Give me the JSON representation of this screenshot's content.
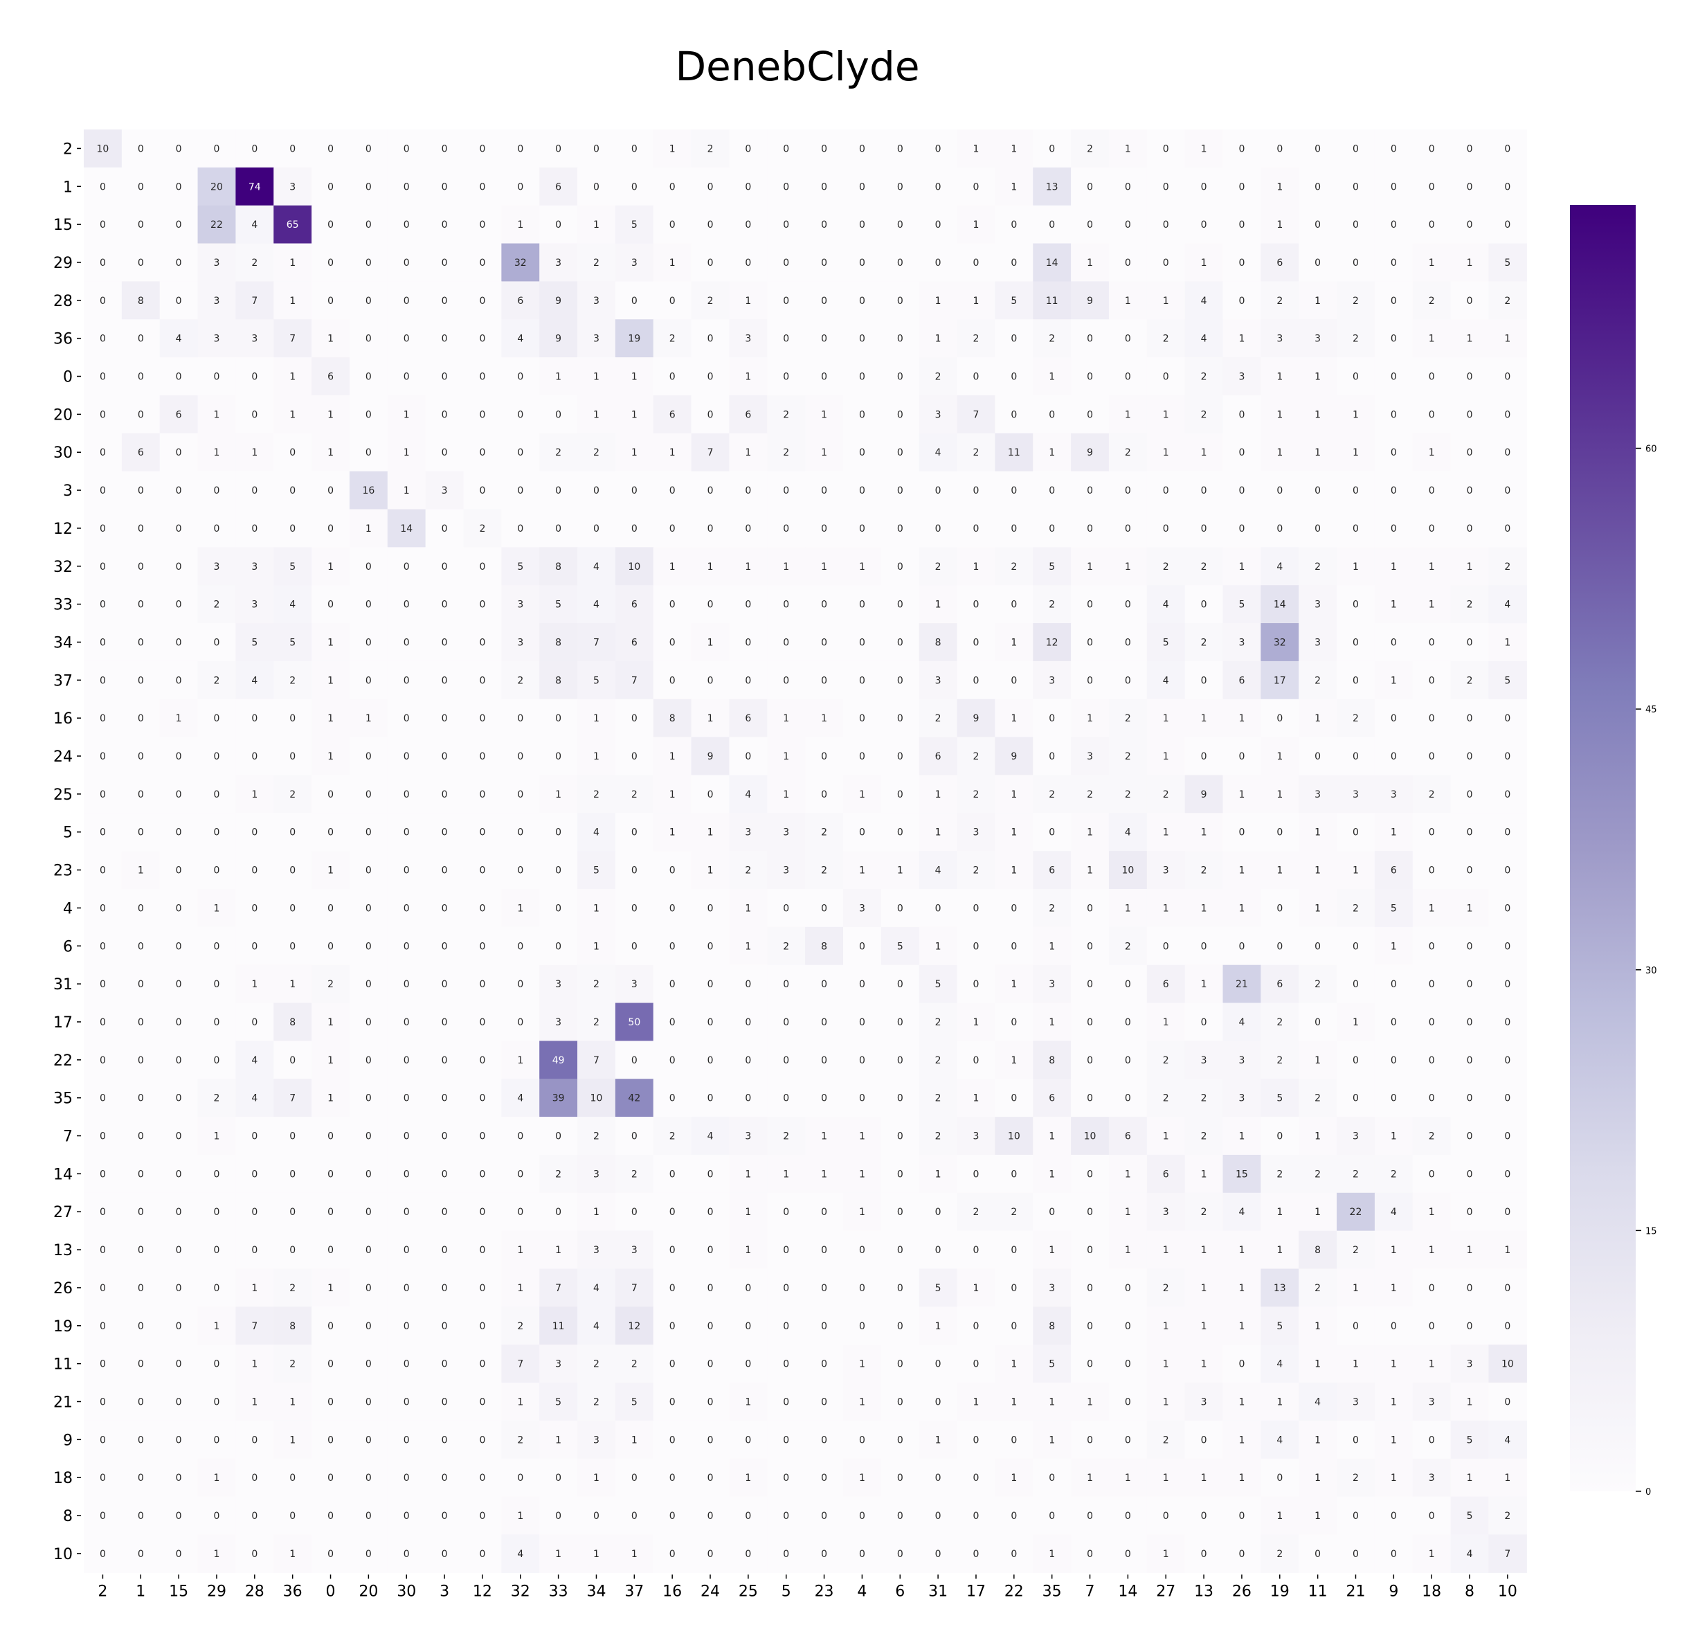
{
  "chart_data": {
    "type": "heatmap",
    "title": "DenebClyde",
    "row_labels": [
      "2",
      "1",
      "15",
      "29",
      "28",
      "36",
      "0",
      "20",
      "30",
      "3",
      "12",
      "32",
      "33",
      "34",
      "37",
      "16",
      "24",
      "25",
      "5",
      "23",
      "4",
      "6",
      "31",
      "17",
      "22",
      "35",
      "7",
      "14",
      "27",
      "13",
      "26",
      "19",
      "11",
      "21",
      "9",
      "18",
      "8",
      "10"
    ],
    "col_labels": [
      "2",
      "1",
      "15",
      "29",
      "28",
      "36",
      "0",
      "20",
      "30",
      "3",
      "12",
      "32",
      "33",
      "34",
      "37",
      "16",
      "24",
      "25",
      "5",
      "23",
      "4",
      "6",
      "31",
      "17",
      "22",
      "35",
      "7",
      "14",
      "27",
      "13",
      "26",
      "19",
      "11",
      "21",
      "9",
      "18",
      "8",
      "10"
    ],
    "values": [
      [
        10,
        0,
        0,
        0,
        0,
        0,
        0,
        0,
        0,
        0,
        0,
        0,
        0,
        0,
        0,
        1,
        2,
        0,
        0,
        0,
        0,
        0,
        0,
        1,
        1,
        0,
        2,
        1,
        0,
        1,
        0,
        0,
        0,
        0,
        0,
        0,
        0,
        0
      ],
      [
        0,
        0,
        0,
        20,
        74,
        3,
        0,
        0,
        0,
        0,
        0,
        0,
        6,
        0,
        0,
        0,
        0,
        0,
        0,
        0,
        0,
        0,
        0,
        0,
        1,
        13,
        0,
        0,
        0,
        0,
        0,
        1,
        0,
        0,
        0,
        0,
        0,
        0
      ],
      [
        0,
        0,
        0,
        22,
        4,
        65,
        0,
        0,
        0,
        0,
        0,
        1,
        0,
        1,
        5,
        0,
        0,
        0,
        0,
        0,
        0,
        0,
        0,
        1,
        0,
        0,
        0,
        0,
        0,
        0,
        0,
        1,
        0,
        0,
        0,
        0,
        0,
        0
      ],
      [
        0,
        0,
        0,
        3,
        2,
        1,
        0,
        0,
        0,
        0,
        0,
        32,
        3,
        2,
        3,
        1,
        0,
        0,
        0,
        0,
        0,
        0,
        0,
        0,
        0,
        14,
        1,
        0,
        0,
        1,
        0,
        6,
        0,
        0,
        0,
        1,
        1,
        5
      ],
      [
        0,
        8,
        0,
        3,
        7,
        1,
        0,
        0,
        0,
        0,
        0,
        6,
        9,
        3,
        0,
        0,
        2,
        1,
        0,
        0,
        0,
        0,
        1,
        1,
        5,
        11,
        9,
        1,
        1,
        4,
        0,
        2,
        1,
        2,
        0,
        2,
        0,
        2
      ],
      [
        0,
        0,
        4,
        3,
        3,
        7,
        1,
        0,
        0,
        0,
        0,
        4,
        9,
        3,
        19,
        2,
        0,
        3,
        0,
        0,
        0,
        0,
        1,
        2,
        0,
        2,
        0,
        0,
        2,
        4,
        1,
        3,
        3,
        2,
        0,
        1,
        1,
        1
      ],
      [
        0,
        0,
        0,
        0,
        0,
        1,
        6,
        0,
        0,
        0,
        0,
        0,
        1,
        1,
        1,
        0,
        0,
        1,
        0,
        0,
        0,
        0,
        2,
        0,
        0,
        1,
        0,
        0,
        0,
        2,
        3,
        1,
        1,
        0,
        0,
        0,
        0,
        0
      ],
      [
        0,
        0,
        6,
        1,
        0,
        1,
        1,
        0,
        1,
        0,
        0,
        0,
        0,
        1,
        1,
        6,
        0,
        6,
        2,
        1,
        0,
        0,
        3,
        7,
        0,
        0,
        0,
        1,
        1,
        2,
        0,
        1,
        1,
        1,
        0,
        0,
        0,
        0
      ],
      [
        0,
        6,
        0,
        1,
        1,
        0,
        1,
        0,
        1,
        0,
        0,
        0,
        2,
        2,
        1,
        1,
        7,
        1,
        2,
        1,
        0,
        0,
        4,
        2,
        11,
        1,
        9,
        2,
        1,
        1,
        0,
        1,
        1,
        1,
        0,
        1,
        0,
        0
      ],
      [
        0,
        0,
        0,
        0,
        0,
        0,
        0,
        16,
        1,
        3,
        0,
        0,
        0,
        0,
        0,
        0,
        0,
        0,
        0,
        0,
        0,
        0,
        0,
        0,
        0,
        0,
        0,
        0,
        0,
        0,
        0,
        0,
        0,
        0,
        0,
        0,
        0,
        0
      ],
      [
        0,
        0,
        0,
        0,
        0,
        0,
        0,
        1,
        14,
        0,
        2,
        0,
        0,
        0,
        0,
        0,
        0,
        0,
        0,
        0,
        0,
        0,
        0,
        0,
        0,
        0,
        0,
        0,
        0,
        0,
        0,
        0,
        0,
        0,
        0,
        0,
        0,
        0
      ],
      [
        0,
        0,
        0,
        3,
        3,
        5,
        1,
        0,
        0,
        0,
        0,
        5,
        8,
        4,
        10,
        1,
        1,
        1,
        1,
        1,
        1,
        0,
        2,
        1,
        2,
        5,
        1,
        1,
        2,
        2,
        1,
        4,
        2,
        1,
        1,
        1,
        1,
        2
      ],
      [
        0,
        0,
        0,
        2,
        3,
        4,
        0,
        0,
        0,
        0,
        0,
        3,
        5,
        4,
        6,
        0,
        0,
        0,
        0,
        0,
        0,
        0,
        1,
        0,
        0,
        2,
        0,
        0,
        4,
        0,
        5,
        14,
        3,
        0,
        1,
        1,
        2,
        4
      ],
      [
        0,
        0,
        0,
        0,
        5,
        5,
        1,
        0,
        0,
        0,
        0,
        3,
        8,
        7,
        6,
        0,
        1,
        0,
        0,
        0,
        0,
        0,
        8,
        0,
        1,
        12,
        0,
        0,
        5,
        2,
        3,
        32,
        3,
        0,
        0,
        0,
        0,
        1
      ],
      [
        0,
        0,
        0,
        2,
        4,
        2,
        1,
        0,
        0,
        0,
        0,
        2,
        8,
        5,
        7,
        0,
        0,
        0,
        0,
        0,
        0,
        0,
        3,
        0,
        0,
        3,
        0,
        0,
        4,
        0,
        6,
        17,
        2,
        0,
        1,
        0,
        2,
        5
      ],
      [
        0,
        0,
        1,
        0,
        0,
        0,
        1,
        1,
        0,
        0,
        0,
        0,
        0,
        1,
        0,
        8,
        1,
        6,
        1,
        1,
        0,
        0,
        2,
        9,
        1,
        0,
        1,
        2,
        1,
        1,
        1,
        0,
        1,
        2,
        0,
        0,
        0,
        0
      ],
      [
        0,
        0,
        0,
        0,
        0,
        0,
        1,
        0,
        0,
        0,
        0,
        0,
        0,
        1,
        0,
        1,
        9,
        0,
        1,
        0,
        0,
        0,
        6,
        2,
        9,
        0,
        3,
        2,
        1,
        0,
        0,
        1,
        0,
        0,
        0,
        0,
        0,
        0
      ],
      [
        0,
        0,
        0,
        0,
        1,
        2,
        0,
        0,
        0,
        0,
        0,
        0,
        1,
        2,
        2,
        1,
        0,
        4,
        1,
        0,
        1,
        0,
        1,
        2,
        1,
        2,
        2,
        2,
        2,
        9,
        1,
        1,
        3,
        3,
        3,
        2,
        0,
        0
      ],
      [
        0,
        0,
        0,
        0,
        0,
        0,
        0,
        0,
        0,
        0,
        0,
        0,
        0,
        4,
        0,
        1,
        1,
        3,
        3,
        2,
        0,
        0,
        1,
        3,
        1,
        0,
        1,
        4,
        1,
        1,
        0,
        0,
        1,
        0,
        1,
        0,
        0,
        0
      ],
      [
        0,
        1,
        0,
        0,
        0,
        0,
        1,
        0,
        0,
        0,
        0,
        0,
        0,
        5,
        0,
        0,
        1,
        2,
        3,
        2,
        1,
        1,
        4,
        2,
        1,
        6,
        1,
        10,
        3,
        2,
        1,
        1,
        1,
        1,
        6,
        0,
        0,
        0
      ],
      [
        0,
        0,
        0,
        1,
        0,
        0,
        0,
        0,
        0,
        0,
        0,
        1,
        0,
        1,
        0,
        0,
        0,
        1,
        0,
        0,
        3,
        0,
        0,
        0,
        0,
        2,
        0,
        1,
        1,
        1,
        1,
        0,
        1,
        2,
        5,
        1,
        1,
        0
      ],
      [
        0,
        0,
        0,
        0,
        0,
        0,
        0,
        0,
        0,
        0,
        0,
        0,
        0,
        1,
        0,
        0,
        0,
        1,
        2,
        8,
        0,
        5,
        1,
        0,
        0,
        1,
        0,
        2,
        0,
        0,
        0,
        0,
        0,
        0,
        1,
        0,
        0,
        0
      ],
      [
        0,
        0,
        0,
        0,
        1,
        1,
        2,
        0,
        0,
        0,
        0,
        0,
        3,
        2,
        3,
        0,
        0,
        0,
        0,
        0,
        0,
        0,
        5,
        0,
        1,
        3,
        0,
        0,
        6,
        1,
        21,
        6,
        2,
        0,
        0,
        0,
        0,
        0
      ],
      [
        0,
        0,
        0,
        0,
        0,
        8,
        1,
        0,
        0,
        0,
        0,
        0,
        3,
        2,
        50,
        0,
        0,
        0,
        0,
        0,
        0,
        0,
        2,
        1,
        0,
        1,
        0,
        0,
        1,
        0,
        4,
        2,
        0,
        1,
        0,
        0,
        0,
        0
      ],
      [
        0,
        0,
        0,
        0,
        4,
        0,
        1,
        0,
        0,
        0,
        0,
        1,
        49,
        7,
        0,
        0,
        0,
        0,
        0,
        0,
        0,
        0,
        2,
        0,
        1,
        8,
        0,
        0,
        2,
        3,
        3,
        2,
        1,
        0,
        0,
        0,
        0,
        0
      ],
      [
        0,
        0,
        0,
        2,
        4,
        7,
        1,
        0,
        0,
        0,
        0,
        4,
        39,
        10,
        42,
        0,
        0,
        0,
        0,
        0,
        0,
        0,
        2,
        1,
        0,
        6,
        0,
        0,
        2,
        2,
        3,
        5,
        2,
        0,
        0,
        0,
        0,
        0
      ],
      [
        0,
        0,
        0,
        1,
        0,
        0,
        0,
        0,
        0,
        0,
        0,
        0,
        0,
        2,
        0,
        2,
        4,
        3,
        2,
        1,
        1,
        0,
        2,
        3,
        10,
        1,
        10,
        6,
        1,
        2,
        1,
        0,
        1,
        3,
        1,
        2,
        0,
        0
      ],
      [
        0,
        0,
        0,
        0,
        0,
        0,
        0,
        0,
        0,
        0,
        0,
        0,
        2,
        3,
        2,
        0,
        0,
        1,
        1,
        1,
        1,
        0,
        1,
        0,
        0,
        1,
        0,
        1,
        6,
        1,
        15,
        2,
        2,
        2,
        2,
        0,
        0,
        0
      ],
      [
        0,
        0,
        0,
        0,
        0,
        0,
        0,
        0,
        0,
        0,
        0,
        0,
        0,
        1,
        0,
        0,
        0,
        1,
        0,
        0,
        1,
        0,
        0,
        2,
        2,
        0,
        0,
        1,
        3,
        2,
        4,
        1,
        1,
        22,
        4,
        1,
        0,
        0
      ],
      [
        0,
        0,
        0,
        0,
        0,
        0,
        0,
        0,
        0,
        0,
        0,
        1,
        1,
        3,
        3,
        0,
        0,
        1,
        0,
        0,
        0,
        0,
        0,
        0,
        0,
        1,
        0,
        1,
        1,
        1,
        1,
        1,
        8,
        2,
        1,
        1,
        1,
        1
      ],
      [
        0,
        0,
        0,
        0,
        1,
        2,
        1,
        0,
        0,
        0,
        0,
        1,
        7,
        4,
        7,
        0,
        0,
        0,
        0,
        0,
        0,
        0,
        5,
        1,
        0,
        3,
        0,
        0,
        2,
        1,
        1,
        13,
        2,
        1,
        1,
        0,
        0,
        0
      ],
      [
        0,
        0,
        0,
        1,
        7,
        8,
        0,
        0,
        0,
        0,
        0,
        2,
        11,
        4,
        12,
        0,
        0,
        0,
        0,
        0,
        0,
        0,
        1,
        0,
        0,
        8,
        0,
        0,
        1,
        1,
        1,
        5,
        1,
        0,
        0,
        0,
        0,
        0
      ],
      [
        0,
        0,
        0,
        0,
        1,
        2,
        0,
        0,
        0,
        0,
        0,
        7,
        3,
        2,
        2,
        0,
        0,
        0,
        0,
        0,
        1,
        0,
        0,
        0,
        1,
        5,
        0,
        0,
        1,
        1,
        0,
        4,
        1,
        1,
        1,
        1,
        3,
        10
      ],
      [
        0,
        0,
        0,
        0,
        1,
        1,
        0,
        0,
        0,
        0,
        0,
        1,
        5,
        2,
        5,
        0,
        0,
        1,
        0,
        0,
        1,
        0,
        0,
        1,
        1,
        1,
        1,
        0,
        1,
        3,
        1,
        1,
        4,
        3,
        1,
        3,
        1,
        0
      ],
      [
        0,
        0,
        0,
        0,
        0,
        1,
        0,
        0,
        0,
        0,
        0,
        2,
        1,
        3,
        1,
        0,
        0,
        0,
        0,
        0,
        0,
        0,
        1,
        0,
        0,
        1,
        0,
        0,
        2,
        0,
        1,
        4,
        1,
        0,
        1,
        0,
        5,
        4
      ],
      [
        0,
        0,
        0,
        1,
        0,
        0,
        0,
        0,
        0,
        0,
        0,
        0,
        0,
        1,
        0,
        0,
        0,
        1,
        0,
        0,
        1,
        0,
        0,
        0,
        1,
        0,
        1,
        1,
        1,
        1,
        1,
        0,
        1,
        2,
        1,
        3,
        1,
        1
      ],
      [
        0,
        0,
        0,
        0,
        0,
        0,
        0,
        0,
        0,
        0,
        0,
        1,
        0,
        0,
        0,
        0,
        0,
        0,
        0,
        0,
        0,
        0,
        0,
        0,
        0,
        0,
        0,
        0,
        0,
        0,
        0,
        1,
        1,
        0,
        0,
        0,
        5,
        2
      ],
      [
        0,
        0,
        0,
        1,
        0,
        1,
        0,
        0,
        0,
        0,
        0,
        4,
        1,
        1,
        1,
        0,
        0,
        0,
        0,
        0,
        0,
        0,
        0,
        0,
        0,
        1,
        0,
        0,
        1,
        0,
        0,
        2,
        0,
        0,
        0,
        1,
        4,
        7
      ]
    ],
    "colormap": "Purples",
    "color_low": "#fcfbfd",
    "color_high": "#3f007d",
    "vmin": 0,
    "vmax": 74,
    "colorbar_ticks": [
      0,
      15,
      30,
      45,
      60
    ],
    "annotations": true,
    "grid": false,
    "legend": "colorbar-right"
  }
}
